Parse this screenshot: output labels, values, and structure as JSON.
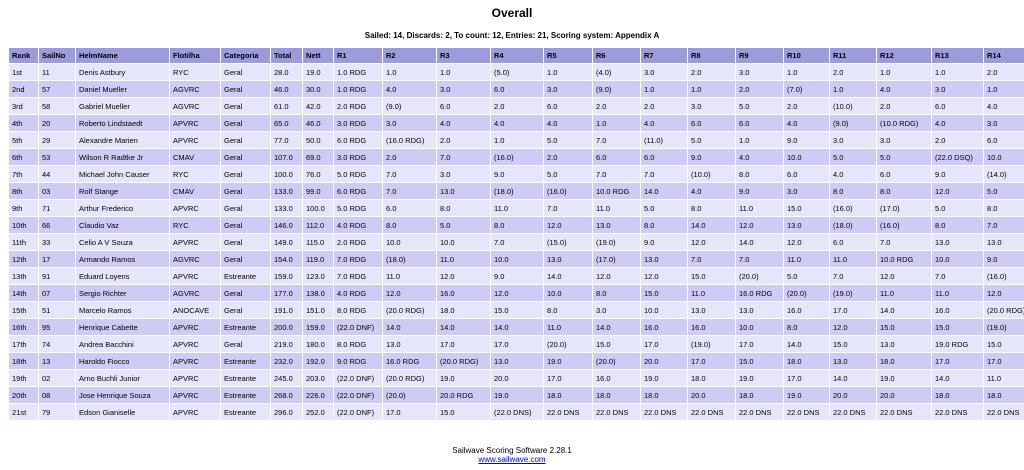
{
  "header": {
    "title": "Overall",
    "summary": "Sailed: 14, Discards: 2, To count: 12, Entries: 21, Scoring system: Appendix A"
  },
  "table": {
    "columns": [
      "Rank",
      "SailNo",
      "HelmName",
      "Flotilha",
      "Categoria",
      "Total",
      "Nett",
      "R1",
      "R2",
      "R3",
      "R4",
      "R5",
      "R6",
      "R7",
      "R8",
      "R9",
      "R10",
      "R11",
      "R12",
      "R13",
      "R14"
    ],
    "rows": [
      [
        "1st",
        "11",
        "Denis Astbury",
        "RYC",
        "Geral",
        "28.0",
        "19.0",
        "1.0 RDG",
        "1.0",
        "1.0",
        "(5.0)",
        "1.0",
        "(4.0)",
        "3.0",
        "2.0",
        "3.0",
        "1.0",
        "2.0",
        "1.0",
        "1.0",
        "2.0"
      ],
      [
        "2nd",
        "57",
        "Daniel Mueller",
        "AGVRC",
        "Geral",
        "46.0",
        "30.0",
        "1.0 RDG",
        "4.0",
        "3.0",
        "6.0",
        "3.0",
        "(9.0)",
        "1.0",
        "1.0",
        "2.0",
        "(7.0)",
        "1.0",
        "4.0",
        "3.0",
        "1.0"
      ],
      [
        "3rd",
        "58",
        "Gabriel Mueller",
        "AGVRC",
        "Geral",
        "61.0",
        "42.0",
        "2.0 RDG",
        "(9.0)",
        "6.0",
        "2.0",
        "6.0",
        "2.0",
        "2.0",
        "3.0",
        "5.0",
        "2.0",
        "(10.0)",
        "2.0",
        "6.0",
        "4.0"
      ],
      [
        "4th",
        "20",
        "Roberto Lindstaedt",
        "APVRC",
        "Geral",
        "65.0",
        "46.0",
        "3.0 RDG",
        "3.0",
        "4.0",
        "4.0",
        "4.0",
        "1.0",
        "4.0",
        "6.0",
        "6.0",
        "4.0",
        "(9.0)",
        "(10.0 RDG)",
        "4.0",
        "3.0"
      ],
      [
        "5th",
        "29",
        "Alexandre Marien",
        "APVRC",
        "Geral",
        "77.0",
        "50.0",
        "6.0 RDG",
        "(16.0 RDG)",
        "2.0",
        "1.0",
        "5.0",
        "7.0",
        "(11.0)",
        "5.0",
        "1.0",
        "9.0",
        "3.0",
        "3.0",
        "2.0",
        "6.0"
      ],
      [
        "6th",
        "53",
        "Wilson R Radtke Jr",
        "CMAV",
        "Geral",
        "107.0",
        "69.0",
        "3.0 RDG",
        "2.0",
        "7.0",
        "(16.0)",
        "2.0",
        "6.0",
        "6.0",
        "9.0",
        "4.0",
        "10.0",
        "5.0",
        "5.0",
        "(22.0 DSQ)",
        "10.0"
      ],
      [
        "7th",
        "44",
        "Michael John Causer",
        "RYC",
        "Geral",
        "100.0",
        "76.0",
        "5.0 RDG",
        "7.0",
        "3.0",
        "9.0",
        "5.0",
        "7.0",
        "7.0",
        "(10.0)",
        "8.0",
        "6.0",
        "4.0",
        "6.0",
        "9.0",
        "(14.0)"
      ],
      [
        "8th",
        "03",
        "Rolf Stange",
        "CMAV",
        "Geral",
        "133.0",
        "99.0",
        "6.0 RDG",
        "7.0",
        "13.0",
        "(18.0)",
        "(16.0)",
        "10.0 RDG",
        "14.0",
        "4.0",
        "9.0",
        "3.0",
        "8.0",
        "8.0",
        "12.0",
        "5.0"
      ],
      [
        "9th",
        "71",
        "Arthur Frederico",
        "APVRC",
        "Geral",
        "133.0",
        "100.0",
        "5.0 RDG",
        "6.0",
        "8.0",
        "11.0",
        "7.0",
        "11.0",
        "5.0",
        "8.0",
        "11.0",
        "15.0",
        "(16.0)",
        "(17.0)",
        "5.0",
        "8.0"
      ],
      [
        "10th",
        "66",
        "Claudio Vaz",
        "RYC",
        "Geral",
        "146.0",
        "112.0",
        "4.0 RDG",
        "8.0",
        "5.0",
        "8.0",
        "12.0",
        "13.0",
        "8.0",
        "14.0",
        "12.0",
        "13.0",
        "(18.0)",
        "(16.0)",
        "8.0",
        "7.0"
      ],
      [
        "11th",
        "33",
        "Celio A V Souza",
        "APVRC",
        "Geral",
        "149.0",
        "115.0",
        "2.0 RDG",
        "10.0",
        "10.0",
        "7.0",
        "(15.0)",
        "(19.0)",
        "9.0",
        "12.0",
        "14.0",
        "12.0",
        "6.0",
        "7.0",
        "13.0",
        "13.0"
      ],
      [
        "12th",
        "17",
        "Armando Ramos",
        "AGVRC",
        "Geral",
        "154.0",
        "119.0",
        "7.0 RDG",
        "(18.0)",
        "11.0",
        "10.0",
        "13.0",
        "(17.0)",
        "13.0",
        "7.0",
        "7.0",
        "11.0",
        "11.0",
        "10.0 RDG",
        "10.0",
        "9.0"
      ],
      [
        "13th",
        "91",
        "Eduard Loyens",
        "APVRC",
        "Estreante",
        "159.0",
        "123.0",
        "7.0 RDG",
        "11.0",
        "12.0",
        "9.0",
        "14.0",
        "12.0",
        "12.0",
        "15.0",
        "(20.0)",
        "5.0",
        "7.0",
        "12.0",
        "7.0",
        "(16.0)"
      ],
      [
        "14th",
        "07",
        "Sergio Richter",
        "AGVRC",
        "Geral",
        "177.0",
        "138.0",
        "4.0 RDG",
        "12.0",
        "16.0",
        "12.0",
        "10.0",
        "8.0",
        "15.0",
        "11.0",
        "16.0 RDG",
        "(20.0)",
        "(19.0)",
        "11.0",
        "11.0",
        "12.0"
      ],
      [
        "15th",
        "51",
        "Marcelo Ramos",
        "ANOCAVE",
        "Geral",
        "191.0",
        "151.0",
        "8.0 RDG",
        "(20.0 RDG)",
        "18.0",
        "15.0",
        "8.0",
        "3.0",
        "10.0",
        "13.0",
        "13.0",
        "16.0",
        "17.0",
        "14.0",
        "16.0",
        "(20.0 RDG)"
      ],
      [
        "16th",
        "95",
        "Henrique Cabette",
        "APVRC",
        "Estreante",
        "200.0",
        "159.0",
        "(22.0 DNF)",
        "14.0",
        "14.0",
        "14.0",
        "11.0",
        "14.0",
        "16.0",
        "16.0",
        "10.0",
        "8.0",
        "12.0",
        "15.0",
        "15.0",
        "(19.0)"
      ],
      [
        "17th",
        "74",
        "Andrea Bacchini",
        "APVRC",
        "Geral",
        "219.0",
        "180.0",
        "8.0 RDG",
        "13.0",
        "17.0",
        "17.0",
        "(20.0)",
        "15.0",
        "17.0",
        "(19.0)",
        "17.0",
        "14.0",
        "15.0",
        "13.0",
        "19.0 RDG",
        "15.0"
      ],
      [
        "18th",
        "13",
        "Haroldo Fiocco",
        "APVRC",
        "Estreante",
        "232.0",
        "192.0",
        "9.0 RDG",
        "16.0 RDG",
        "(20.0 RDG)",
        "13.0",
        "19.0",
        "(20.0)",
        "20.0",
        "17.0",
        "15.0",
        "18.0",
        "13.0",
        "18.0",
        "17.0",
        "17.0"
      ],
      [
        "19th",
        "02",
        "Arno Buchli Junior",
        "APVRC",
        "Estreante",
        "245.0",
        "203.0",
        "(22.0 DNF)",
        "(20.0 RDG)",
        "19.0",
        "20.0",
        "17.0",
        "16.0",
        "19.0",
        "18.0",
        "19.0",
        "17.0",
        "14.0",
        "19.0",
        "14.0",
        "11.0"
      ],
      [
        "20th",
        "08",
        "Jose Henrique Souza",
        "APVRC",
        "Estreante",
        "268.0",
        "226.0",
        "(22.0 DNF)",
        "(20.0)",
        "20.0 RDG",
        "19.0",
        "18.0",
        "18.0",
        "18.0",
        "20.0",
        "18.0",
        "19.0",
        "20.0",
        "20.0",
        "18.0",
        "18.0"
      ],
      [
        "21st",
        "79",
        "Edson Gianiselle",
        "APVRC",
        "Estreante",
        "296.0",
        "252.0",
        "(22.0 DNF)",
        "17.0",
        "15.0",
        "(22.0 DNS)",
        "22.0 DNS",
        "22.0 DNS",
        "22.0 DNS",
        "22.0 DNS",
        "22.0 DNS",
        "22.0 DNS",
        "22.0 DNS",
        "22.0 DNS",
        "22.0 DNS",
        "22.0 DNS"
      ]
    ]
  },
  "footer": {
    "software": "Sailwave Scoring Software 2.28.1",
    "link": "www.sailwave.com"
  }
}
